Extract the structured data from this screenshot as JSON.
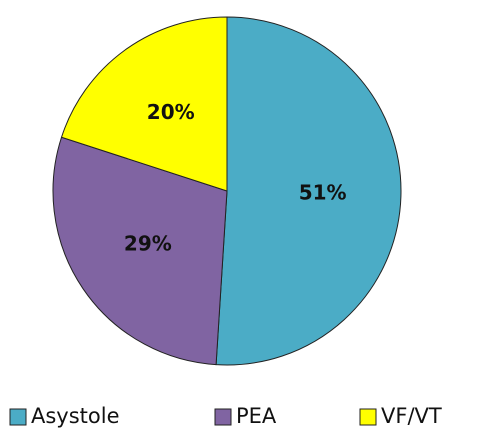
{
  "chart_data": {
    "type": "pie",
    "categories": [
      "Asystole",
      "PEA",
      "VF/VT"
    ],
    "values": [
      51,
      29,
      20
    ],
    "value_labels": [
      "51%",
      "29%",
      "20%"
    ],
    "colors": [
      "#4bacc6",
      "#8064a2",
      "#ffff00"
    ],
    "legend": "bottom"
  }
}
